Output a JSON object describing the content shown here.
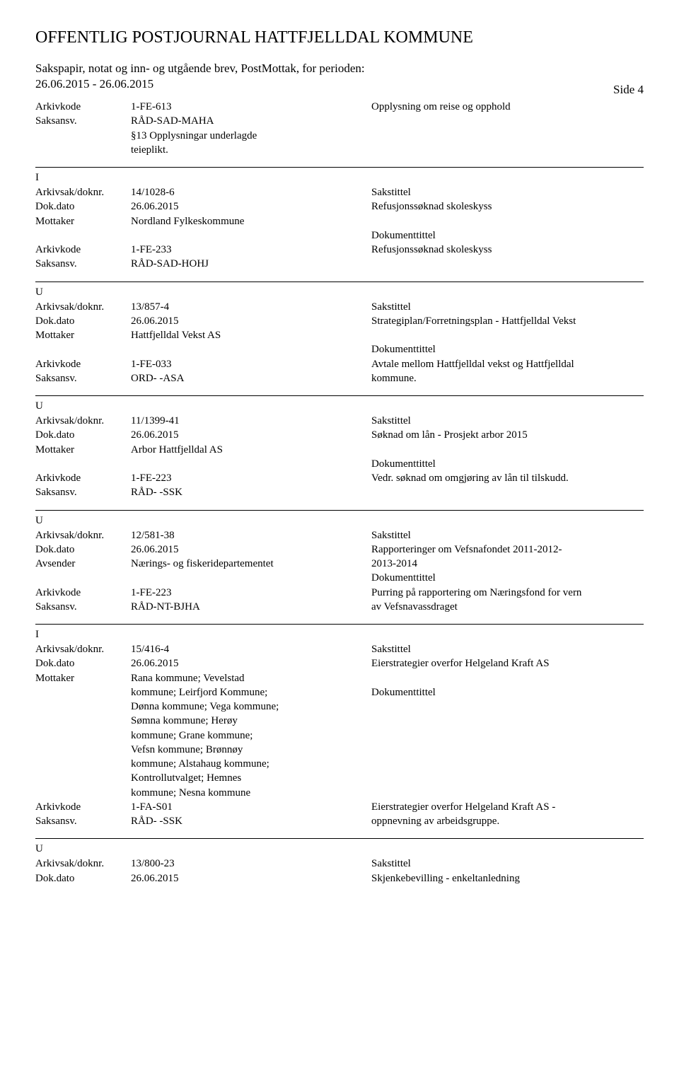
{
  "header": {
    "title": "OFFENTLIG POSTJOURNAL HATTFJELLDAL KOMMUNE",
    "subtitle": "Sakspapir, notat og inn- og utgående brev, PostMottak, for perioden:",
    "dateRange": "26.06.2015 - 26.06.2015",
    "side": "Side 4"
  },
  "labels": {
    "arkivkode": "Arkivkode",
    "saksansv": "Saksansv.",
    "arkivsak": "Arkivsak/doknr.",
    "dokdato": "Dok.dato",
    "mottaker": "Mottaker",
    "avsender": "Avsender",
    "sakstittel": "Sakstittel",
    "dokumenttittel": "Dokumenttittel"
  },
  "entries": [
    {
      "marker": "",
      "topDivider": false,
      "rows": [
        {
          "label": "arkivkode",
          "value": "1-FE-613",
          "right": "Opplysning om reise og opphold"
        },
        {
          "label": "saksansv",
          "value": "RÅD-SAD-MAHA",
          "right": ""
        },
        {
          "label": "",
          "value": "§13 Opplysningar underlagde",
          "right": ""
        },
        {
          "label": "",
          "value": "teieplikt.",
          "right": ""
        }
      ]
    },
    {
      "marker": "I",
      "topDivider": true,
      "rows": [
        {
          "label": "arkivsak",
          "value": "14/1028-6",
          "right": "Sakstittel"
        },
        {
          "label": "dokdato",
          "value": "26.06.2015",
          "right": "Refusjonssøknad skoleskyss"
        },
        {
          "label": "mottaker",
          "value": "Nordland Fylkeskommune",
          "right": ""
        },
        {
          "label": "",
          "value": "",
          "right": "Dokumenttittel"
        },
        {
          "label": "arkivkode",
          "value": "1-FE-233",
          "right": "Refusjonssøknad skoleskyss"
        },
        {
          "label": "saksansv",
          "value": "RÅD-SAD-HOHJ",
          "right": ""
        }
      ]
    },
    {
      "marker": "U",
      "topDivider": true,
      "rows": [
        {
          "label": "arkivsak",
          "value": "13/857-4",
          "right": "Sakstittel"
        },
        {
          "label": "dokdato",
          "value": "26.06.2015",
          "right": "Strategiplan/Forretningsplan - Hattfjelldal Vekst"
        },
        {
          "label": "mottaker",
          "value": "Hattfjelldal Vekst AS",
          "right": ""
        },
        {
          "label": "",
          "value": "",
          "right": "Dokumenttittel"
        },
        {
          "label": "arkivkode",
          "value": "1-FE-033",
          "right": "Avtale mellom Hattfjelldal vekst og Hattfjelldal"
        },
        {
          "label": "saksansv",
          "value": "ORD- -ASA",
          "right": "kommune."
        }
      ]
    },
    {
      "marker": "U",
      "topDivider": true,
      "rows": [
        {
          "label": "arkivsak",
          "value": "11/1399-41",
          "right": "Sakstittel"
        },
        {
          "label": "dokdato",
          "value": "26.06.2015",
          "right": "Søknad om lån - Prosjekt arbor 2015"
        },
        {
          "label": "mottaker",
          "value": "Arbor Hattfjelldal AS",
          "right": ""
        },
        {
          "label": "",
          "value": "",
          "right": "Dokumenttittel"
        },
        {
          "label": "arkivkode",
          "value": "1-FE-223",
          "right": "Vedr. søknad om omgjøring av lån til tilskudd."
        },
        {
          "label": "saksansv",
          "value": "RÅD- -SSK",
          "right": ""
        }
      ]
    },
    {
      "marker": "U",
      "topDivider": true,
      "rows": [
        {
          "label": "arkivsak",
          "value": "12/581-38",
          "right": "Sakstittel"
        },
        {
          "label": "dokdato",
          "value": "26.06.2015",
          "right": "Rapporteringer om Vefsnafondet 2011-2012-"
        },
        {
          "label": "avsender",
          "value": "Nærings- og fiskeridepartementet",
          "right": "2013-2014"
        },
        {
          "label": "",
          "value": "",
          "right": "Dokumenttittel"
        },
        {
          "label": "arkivkode",
          "value": "1-FE-223",
          "right": "Purring på rapportering om Næringsfond for vern"
        },
        {
          "label": "saksansv",
          "value": "RÅD-NT-BJHA",
          "right": "av Vefsnavassdraget"
        }
      ]
    },
    {
      "marker": "I",
      "topDivider": true,
      "rows": [
        {
          "label": "arkivsak",
          "value": "15/416-4",
          "right": "Sakstittel"
        },
        {
          "label": "dokdato",
          "value": "26.06.2015",
          "right": "Eierstrategier overfor Helgeland Kraft AS"
        },
        {
          "label": "mottaker",
          "value": "Rana kommune; Vevelstad",
          "right": ""
        },
        {
          "label": "",
          "value": "kommune; Leirfjord Kommune;",
          "right": "Dokumenttittel"
        },
        {
          "label": "",
          "value": "Dønna kommune; Vega kommune;",
          "right": ""
        },
        {
          "label": "",
          "value": "Sømna kommune; Herøy",
          "right": ""
        },
        {
          "label": "",
          "value": "kommune; Grane kommune;",
          "right": ""
        },
        {
          "label": "",
          "value": "Vefsn kommune; Brønnøy",
          "right": ""
        },
        {
          "label": "",
          "value": "kommune; Alstahaug kommune;",
          "right": ""
        },
        {
          "label": "",
          "value": "Kontrollutvalget; Hemnes",
          "right": ""
        },
        {
          "label": "",
          "value": "kommune; Nesna kommune",
          "right": ""
        },
        {
          "label": "arkivkode",
          "value": "1-FA-S01",
          "right": "Eierstrategier overfor Helgeland Kraft AS -"
        },
        {
          "label": "saksansv",
          "value": "RÅD- -SSK",
          "right": "oppnevning av arbeidsgruppe."
        }
      ]
    },
    {
      "marker": "U",
      "topDivider": true,
      "rows": [
        {
          "label": "arkivsak",
          "value": "13/800-23",
          "right": "Sakstittel"
        },
        {
          "label": "dokdato",
          "value": "26.06.2015",
          "right": "Skjenkebevilling - enkeltanledning"
        }
      ]
    }
  ]
}
